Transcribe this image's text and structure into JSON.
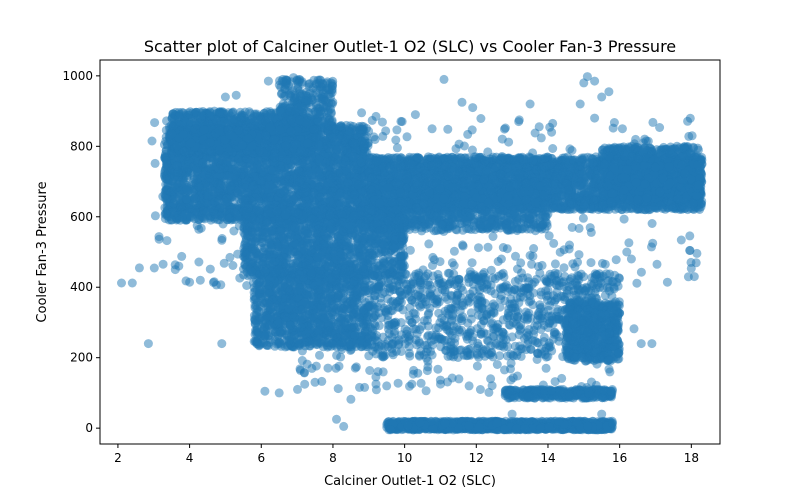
{
  "chart_data": {
    "type": "scatter",
    "title": "Scatter plot of Calciner Outlet-1 O2 (SLC) vs Cooler Fan-3 Pressure",
    "xlabel": "Calciner Outlet-1 O2 (SLC)",
    "ylabel": "Cooler Fan-3 Pressure",
    "xlim": [
      1.5,
      18.8
    ],
    "ylim": [
      -45,
      1045
    ],
    "xticks": [
      2,
      4,
      6,
      8,
      10,
      12,
      14,
      16,
      18
    ],
    "yticks": [
      0,
      200,
      400,
      600,
      800,
      1000
    ],
    "grid": false,
    "marker_color": "#1f77b4",
    "marker_alpha": 0.5,
    "series": [
      {
        "regions": [
          {
            "x": [
              3.3,
              9.0
            ],
            "y": [
              590,
              860
            ],
            "n": 3000
          },
          {
            "x": [
              3.5,
              7.5
            ],
            "y": [
              780,
              900
            ],
            "n": 900
          },
          {
            "x": [
              9.0,
              18.3
            ],
            "y": [
              620,
              770
            ],
            "n": 3200
          },
          {
            "x": [
              9.0,
              14.0
            ],
            "y": [
              560,
              700
            ],
            "n": 900
          },
          {
            "x": [
              15.5,
              18.3
            ],
            "y": [
              640,
              800
            ],
            "n": 900
          },
          {
            "x": [
              5.5,
              10.0
            ],
            "y": [
              430,
              620
            ],
            "n": 1300
          },
          {
            "x": [
              5.8,
              9.0
            ],
            "y": [
              230,
              450
            ],
            "n": 1100
          },
          {
            "x": [
              6.5,
              8.0
            ],
            "y": [
              840,
              990
            ],
            "n": 260
          },
          {
            "x": [
              9.0,
              16.0
            ],
            "y": [
              200,
              440
            ],
            "n": 800
          },
          {
            "x": [
              14.5,
              16.0
            ],
            "y": [
              190,
              360
            ],
            "n": 500
          },
          {
            "x": [
              9.5,
              15.8
            ],
            "y": [
              -5,
              20
            ],
            "n": 1200
          },
          {
            "x": [
              12.8,
              15.8
            ],
            "y": [
              85,
              110
            ],
            "n": 350
          },
          {
            "x": [
              3.0,
              18.3
            ],
            "y": [
              400,
              880
            ],
            "n": 400
          },
          {
            "x": [
              7.0,
              16.0
            ],
            "y": [
              100,
              470
            ],
            "n": 250
          }
        ],
        "points": [
          [
            2.1,
            412
          ],
          [
            2.4,
            412
          ],
          [
            2.6,
            455
          ],
          [
            2.85,
            240
          ],
          [
            2.95,
            815
          ],
          [
            3.3,
            805
          ],
          [
            3.6,
            450
          ],
          [
            3.9,
            418
          ],
          [
            4.3,
            420
          ],
          [
            4.9,
            240
          ],
          [
            6.1,
            105
          ],
          [
            6.5,
            100
          ],
          [
            7.2,
            158
          ],
          [
            7.5,
            130
          ],
          [
            8.3,
            5
          ],
          [
            8.1,
            25
          ],
          [
            8.5,
            82
          ],
          [
            9.2,
            125
          ],
          [
            9.5,
            120
          ],
          [
            10.2,
            125
          ],
          [
            11.0,
            125
          ],
          [
            11.8,
            120
          ],
          [
            12.4,
            140
          ],
          [
            13.0,
            40
          ],
          [
            15.5,
            40
          ],
          [
            15.8,
            15
          ],
          [
            11.1,
            990
          ],
          [
            11.6,
            925
          ],
          [
            11.9,
            910
          ],
          [
            12.9,
            812
          ],
          [
            13.5,
            920
          ],
          [
            13.2,
            875
          ],
          [
            10.3,
            890
          ],
          [
            14.1,
            840
          ],
          [
            15.0,
            980
          ],
          [
            15.1,
            998
          ],
          [
            15.3,
            985
          ],
          [
            15.5,
            940
          ],
          [
            15.7,
            955
          ],
          [
            14.9,
            920
          ],
          [
            15.3,
            880
          ],
          [
            17.0,
            740
          ],
          [
            17.6,
            800
          ],
          [
            18.2,
            690
          ],
          [
            16.6,
            240
          ],
          [
            16.9,
            240
          ],
          [
            16.4,
            282
          ],
          [
            16.2,
            500
          ],
          [
            15.2,
            470
          ],
          [
            15.6,
            465
          ],
          [
            14.2,
            440
          ],
          [
            14.6,
            520
          ],
          [
            13.6,
            510
          ],
          [
            12.7,
            480
          ],
          [
            8.8,
            895
          ],
          [
            9.2,
            885
          ],
          [
            6.2,
            985
          ],
          [
            6.6,
            990
          ],
          [
            6.9,
            995
          ],
          [
            5.0,
            940
          ],
          [
            5.3,
            945
          ],
          [
            3.5,
            835
          ],
          [
            3.7,
            460
          ]
        ]
      }
    ]
  }
}
